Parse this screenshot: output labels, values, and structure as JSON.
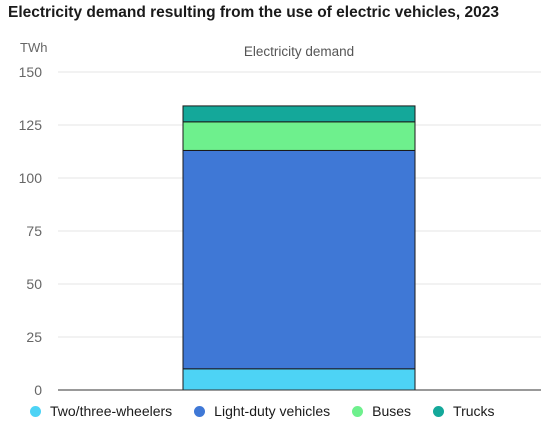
{
  "chart_data": {
    "type": "bar",
    "stacked": true,
    "title": "Electricity demand resulting from the use of electric vehicles, 2023",
    "ylabel": "TWh",
    "xlabel": "",
    "categories": [
      "Electricity demand"
    ],
    "ylim": [
      0,
      150
    ],
    "yticks": [
      0,
      25,
      50,
      75,
      100,
      125,
      150
    ],
    "grid": true,
    "legend_position": "bottom",
    "series": [
      {
        "name": "Two/three-wheelers",
        "values": [
          10
        ],
        "color": "#4dd3f5"
      },
      {
        "name": "Light-duty vehicles",
        "values": [
          103
        ],
        "color": "#3f78d6"
      },
      {
        "name": "Buses",
        "values": [
          13.5
        ],
        "color": "#6ef08d"
      },
      {
        "name": "Trucks",
        "values": [
          7.5
        ],
        "color": "#14a89a"
      }
    ]
  }
}
